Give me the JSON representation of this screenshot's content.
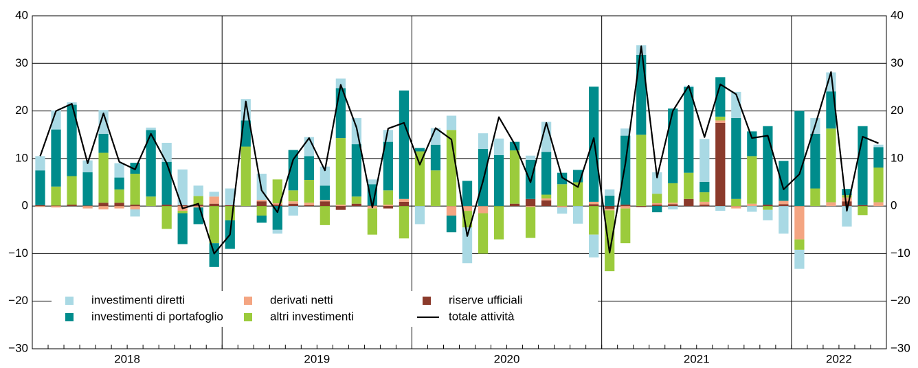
{
  "chart_data": {
    "type": "bar",
    "year_labels": [
      "2018",
      "2019",
      "2020",
      "2021",
      "2022"
    ],
    "ylim": [
      -30,
      40
    ],
    "yticks": [
      {
        "value": -30,
        "label": "−30"
      },
      {
        "value": -20,
        "label": "−20"
      },
      {
        "value": -10,
        "label": "−10"
      },
      0,
      10,
      20,
      30,
      40
    ],
    "grid": true,
    "series": [
      {
        "name": "investimenti diretti",
        "color": "#a9d9e4",
        "values": [
          3,
          4,
          0.5,
          2.5,
          5,
          3,
          -1.5,
          0.5,
          4,
          7.5,
          2.2,
          1,
          3.5,
          4.5,
          5.5,
          -0.8,
          -2,
          4,
          4,
          2,
          5.5,
          1,
          2.5,
          0,
          -3.8,
          3.5,
          3,
          -7.5,
          3.3,
          3.5,
          0,
          0.9,
          6.3,
          -1.3,
          -3.7,
          -4.8,
          1.3,
          1.5,
          2,
          4.5,
          -0.7,
          0.3,
          9,
          -1,
          5.5,
          -1.2,
          -2.2,
          -5.8,
          -4,
          3.3,
          4,
          -4.3,
          0,
          0.5
        ]
      },
      {
        "name": "investimenti di portafoglio",
        "color": "#008c8c",
        "values": [
          7.3,
          12,
          15,
          7,
          4,
          2.5,
          2.3,
          14,
          9,
          -6.5,
          -3.5,
          -5,
          -6,
          5.5,
          -1.5,
          -5,
          8.5,
          5,
          3,
          10.5,
          11,
          4.5,
          10.2,
          22.8,
          0.7,
          5.4,
          -3.5,
          5.3,
          12,
          10.7,
          1.8,
          8.2,
          9,
          2.4,
          2.6,
          24.2,
          2.2,
          14.5,
          16.8,
          -1.3,
          15.7,
          18,
          2.2,
          8.3,
          17,
          5.2,
          16.5,
          8.4,
          20,
          11.5,
          7.8,
          1.3,
          16.6,
          4.3
        ]
      },
      {
        "name": "derivati netti",
        "color": "#f4a582",
        "values": [
          -0.2,
          -0.3,
          0,
          -0.5,
          -0.7,
          -0.5,
          -0.7,
          0,
          0,
          -1,
          -0.3,
          1.5,
          0,
          0,
          0.3,
          0.3,
          0.5,
          0.5,
          0.3,
          0.3,
          0,
          -0.5,
          0.3,
          0.6,
          0,
          0,
          -2,
          -1,
          -1.5,
          0,
          0,
          -0.2,
          0.4,
          -0.3,
          0,
          0.5,
          -0.3,
          -0.5,
          0,
          0.3,
          0.3,
          0,
          0.6,
          0.5,
          -0.5,
          0.5,
          0,
          0.7,
          -7,
          0,
          0.8,
          0.8,
          0,
          0.8
        ]
      },
      {
        "name": "altri investimenti",
        "color": "#9bcb3c",
        "values": [
          0,
          4,
          6,
          0,
          10.5,
          2.8,
          6.5,
          2,
          -4.8,
          -0.5,
          1.8,
          -7.8,
          -3,
          12.5,
          -2,
          5,
          2.3,
          4.8,
          -4,
          14,
          1.5,
          -5.5,
          3,
          -6.8,
          11.5,
          7.5,
          16,
          -3.5,
          -8.5,
          -7,
          11.2,
          -6.5,
          0.8,
          4.6,
          5,
          -6,
          -12.8,
          -7.3,
          15,
          2,
          4.1,
          5.5,
          2,
          0.8,
          1.5,
          10,
          -0.8,
          0,
          -2.2,
          3.7,
          15.5,
          0.5,
          -1.9,
          7.3
        ]
      },
      {
        "name": "riserve ufficiali",
        "color": "#8b3a2b",
        "values": [
          0.2,
          0.1,
          0.3,
          0.1,
          0.7,
          0.7,
          0.3,
          0,
          0.3,
          0.2,
          0.3,
          0.5,
          0.2,
          0,
          1,
          0.3,
          0.5,
          0.2,
          1,
          -0.8,
          0.5,
          0.1,
          -0.5,
          0.9,
          0,
          0,
          0,
          0,
          0,
          0,
          0.5,
          1.5,
          1.2,
          0,
          0,
          0.4,
          -0.6,
          0.3,
          -0.2,
          0.3,
          0.4,
          1.5,
          0.3,
          17.5,
          0,
          0,
          0.3,
          0.4,
          0,
          0,
          0,
          1,
          0.2,
          0
        ]
      }
    ],
    "line_series": {
      "name": "totale attività",
      "color": "#000000",
      "values": [
        10.5,
        20,
        21.5,
        9,
        19.5,
        9.3,
        7.7,
        15.2,
        9,
        -0.5,
        0.5,
        -10,
        -6,
        22,
        3.3,
        -1.3,
        9.8,
        14.3,
        7.5,
        25.5,
        16.5,
        -0.3,
        16.3,
        17.5,
        8.7,
        16.4,
        14,
        -6.3,
        5.3,
        18.7,
        13,
        5,
        17.5,
        6,
        4,
        14.3,
        -9.8,
        9,
        33.6,
        6,
        20,
        25.3,
        14.5,
        25.6,
        23.5,
        14.3,
        14.8,
        3.5,
        6.7,
        17,
        28.2,
        -1,
        14.6,
        13.2
      ]
    }
  }
}
